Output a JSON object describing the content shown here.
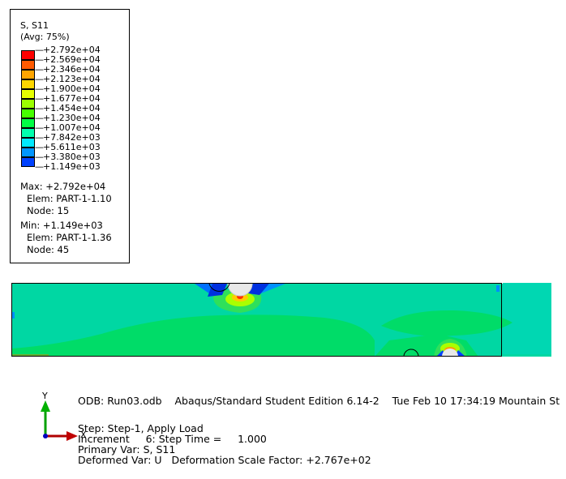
{
  "legend": {
    "title": "S, S11",
    "avg": "(Avg: 75%)",
    "levels": [
      {
        "value": "+2.792e+04",
        "color": "#ff0000"
      },
      {
        "value": "+2.569e+04",
        "color": "#ff5a00"
      },
      {
        "value": "+2.346e+04",
        "color": "#ffa500"
      },
      {
        "value": "+2.123e+04",
        "color": "#ffd700"
      },
      {
        "value": "+1.900e+04",
        "color": "#e6ff00"
      },
      {
        "value": "+1.677e+04",
        "color": "#9bff00"
      },
      {
        "value": "+1.454e+04",
        "color": "#46ff00"
      },
      {
        "value": "+1.230e+04",
        "color": "#00ff45"
      },
      {
        "value": "+1.007e+04",
        "color": "#00ffae"
      },
      {
        "value": "+7.842e+03",
        "color": "#00e9ff"
      },
      {
        "value": "+5.611e+03",
        "color": "#0095ff"
      },
      {
        "value": "+3.380e+03",
        "color": "#0041ff"
      },
      {
        "value": "+1.149e+03",
        "color": "#0000ff"
      }
    ],
    "max": {
      "line": "Max: +2.792e+04",
      "elem": "Elem: PART-1-1.10",
      "node": "Node: 15"
    },
    "min": {
      "line": "Min: +1.149e+03",
      "elem": "Elem: PART-1-1.36",
      "node": "Node: 45"
    }
  },
  "triad": {
    "y_label": "Y",
    "x_label": "X"
  },
  "footer": {
    "odb_line": "ODB: Run03.odb    Abaqus/Standard Student Edition 6.14-2    Tue Feb 10 17:34:19 Mountain St",
    "step_line": "Step: Step-1, Apply Load",
    "increment_line": "Increment     6: Step Time =     1.000",
    "primary_var": "Primary Var: S, S11",
    "deformed_var": "Deformed Var: U   Deformation Scale Factor: +2.767e+02"
  },
  "colors": {
    "contour_base": "#00d7a3",
    "contour_low": "#00dc68",
    "contour_mid": "#1ee0b8"
  }
}
